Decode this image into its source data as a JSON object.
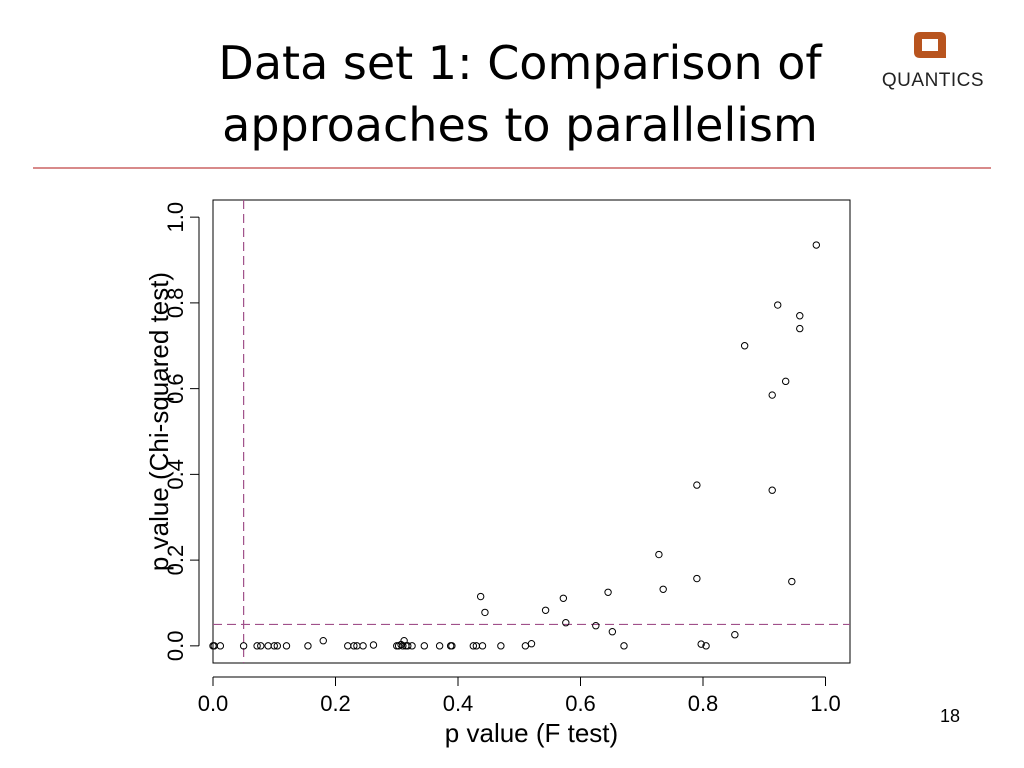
{
  "slide": {
    "title_line1": "Data set 1: Comparison of",
    "title_line2": "approaches to parallelism",
    "logo_text": "QUANTICS",
    "slide_number": "18"
  },
  "colors": {
    "reference_line": "#a0508a",
    "divider": "#d88a8a",
    "logo_brand": "#b8541e"
  },
  "chart_data": {
    "type": "scatter",
    "title": "",
    "xlabel": "p value (F test)",
    "ylabel": "p value (Chi-squared test)",
    "xlim": [
      0,
      1.04
    ],
    "ylim": [
      -0.04,
      1.04
    ],
    "xticks": [
      0.0,
      0.2,
      0.4,
      0.6,
      0.8,
      1.0
    ],
    "yticks": [
      0.0,
      0.2,
      0.4,
      0.6,
      0.8,
      1.0
    ],
    "xtick_labels": [
      "0.0",
      "0.2",
      "0.4",
      "0.6",
      "0.8",
      "1.0"
    ],
    "ytick_labels": [
      "0.0",
      "0.2",
      "0.4",
      "0.6",
      "0.8",
      "1.0"
    ],
    "reference_lines": {
      "vertical_x": 0.05,
      "horizontal_y": 0.05,
      "style": "dashed"
    },
    "points": [
      [
        0.0,
        0.0
      ],
      [
        0.002,
        0.0
      ],
      [
        0.012,
        0.0
      ],
      [
        0.05,
        0.0
      ],
      [
        0.072,
        0.0
      ],
      [
        0.078,
        0.0
      ],
      [
        0.09,
        0.0
      ],
      [
        0.1,
        0.0
      ],
      [
        0.105,
        0.0
      ],
      [
        0.12,
        0.0
      ],
      [
        0.155,
        0.0
      ],
      [
        0.18,
        0.012
      ],
      [
        0.22,
        0.0
      ],
      [
        0.23,
        0.0
      ],
      [
        0.235,
        0.0
      ],
      [
        0.245,
        0.0
      ],
      [
        0.262,
        0.002
      ],
      [
        0.3,
        0.0
      ],
      [
        0.303,
        0.0
      ],
      [
        0.307,
        0.003
      ],
      [
        0.31,
        0.0
      ],
      [
        0.312,
        0.012
      ],
      [
        0.315,
        0.0
      ],
      [
        0.318,
        0.0
      ],
      [
        0.325,
        0.0
      ],
      [
        0.345,
        0.0
      ],
      [
        0.37,
        0.0
      ],
      [
        0.388,
        0.0
      ],
      [
        0.39,
        0.0
      ],
      [
        0.425,
        0.0
      ],
      [
        0.43,
        0.0
      ],
      [
        0.44,
        0.0
      ],
      [
        0.47,
        0.0
      ],
      [
        0.437,
        0.115
      ],
      [
        0.444,
        0.078
      ],
      [
        0.51,
        0.0
      ],
      [
        0.52,
        0.005
      ],
      [
        0.543,
        0.083
      ],
      [
        0.572,
        0.111
      ],
      [
        0.576,
        0.054
      ],
      [
        0.625,
        0.047
      ],
      [
        0.645,
        0.125
      ],
      [
        0.652,
        0.033
      ],
      [
        0.671,
        0.0
      ],
      [
        0.728,
        0.213
      ],
      [
        0.735,
        0.132
      ],
      [
        0.79,
        0.375
      ],
      [
        0.79,
        0.157
      ],
      [
        0.797,
        0.004
      ],
      [
        0.805,
        0.0
      ],
      [
        0.852,
        0.026
      ],
      [
        0.868,
        0.7
      ],
      [
        0.913,
        0.585
      ],
      [
        0.913,
        0.363
      ],
      [
        0.922,
        0.795
      ],
      [
        0.935,
        0.617
      ],
      [
        0.945,
        0.15
      ],
      [
        0.958,
        0.77
      ],
      [
        0.958,
        0.74
      ],
      [
        0.985,
        0.935
      ]
    ]
  }
}
